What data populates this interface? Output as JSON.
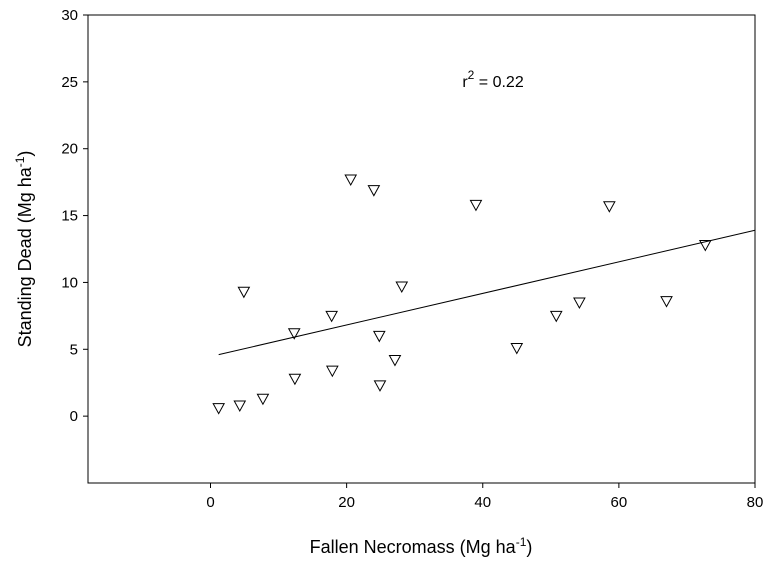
{
  "chart_data": {
    "type": "scatter",
    "xlabel": {
      "text": "Fallen Necromass (Mg ha",
      "sup": "-1",
      "close": ")"
    },
    "ylabel": {
      "text": "Standing Dead (Mg ha",
      "sup": "-1",
      "close": ")"
    },
    "xlim": [
      -18,
      80
    ],
    "ylim": [
      -5,
      30
    ],
    "xticks": [
      0,
      20,
      40,
      60,
      80
    ],
    "yticks": [
      0,
      5,
      10,
      15,
      20,
      25,
      30
    ],
    "grid": false,
    "marker": "open-down-triangle",
    "annotation": {
      "prefix": "r",
      "sup": "2",
      "suffix": " = 0.22",
      "x": 37,
      "y": 24.6
    },
    "points": [
      {
        "x": 1.2,
        "y": 0.6
      },
      {
        "x": 4.3,
        "y": 0.8
      },
      {
        "x": 4.9,
        "y": 9.3
      },
      {
        "x": 7.7,
        "y": 1.3
      },
      {
        "x": 12.3,
        "y": 6.2
      },
      {
        "x": 12.4,
        "y": 2.8
      },
      {
        "x": 17.8,
        "y": 7.5
      },
      {
        "x": 17.9,
        "y": 3.4
      },
      {
        "x": 20.6,
        "y": 17.7
      },
      {
        "x": 24.0,
        "y": 16.9
      },
      {
        "x": 24.8,
        "y": 6.0
      },
      {
        "x": 24.9,
        "y": 2.3
      },
      {
        "x": 27.1,
        "y": 4.2
      },
      {
        "x": 28.1,
        "y": 9.7
      },
      {
        "x": 39.0,
        "y": 15.8
      },
      {
        "x": 45.0,
        "y": 5.1
      },
      {
        "x": 50.8,
        "y": 7.5
      },
      {
        "x": 54.2,
        "y": 8.5
      },
      {
        "x": 58.6,
        "y": 15.7
      },
      {
        "x": 67.0,
        "y": 8.6
      },
      {
        "x": 72.7,
        "y": 12.8
      }
    ],
    "regression": {
      "x": [
        1.2,
        80
      ],
      "y": [
        4.6,
        13.9
      ]
    }
  }
}
